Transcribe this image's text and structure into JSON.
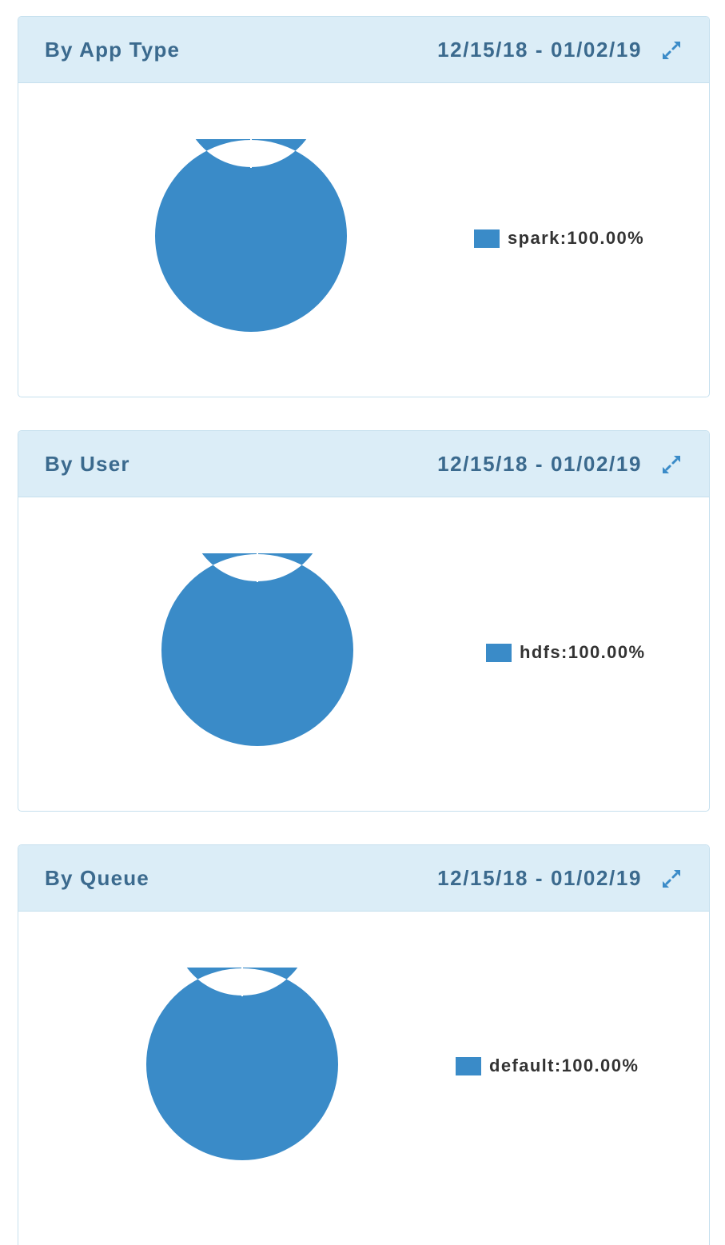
{
  "colors": {
    "series": "#3a8bc8",
    "header_bg": "#dbedf7",
    "title": "#3b6a8e"
  },
  "panels": [
    {
      "title": "By App Type",
      "date_range": "12/15/18 - 01/02/19",
      "expand_icon": "expand-diagonal-icon",
      "chart_data": {
        "type": "pie",
        "variant": "donut",
        "slices": [
          {
            "label": "spark:100.00%",
            "name": "spark",
            "value": 100.0
          }
        ]
      }
    },
    {
      "title": "By User",
      "date_range": "12/15/18 - 01/02/19",
      "expand_icon": "expand-diagonal-icon",
      "chart_data": {
        "type": "pie",
        "variant": "donut",
        "slices": [
          {
            "label": "hdfs:100.00%",
            "name": "hdfs",
            "value": 100.0
          }
        ]
      }
    },
    {
      "title": "By Queue",
      "date_range": "12/15/18 - 01/02/19",
      "expand_icon": "expand-diagonal-icon",
      "chart_data": {
        "type": "pie",
        "variant": "donut",
        "slices": [
          {
            "label": "default:100.00%",
            "name": "default",
            "value": 100.0
          }
        ]
      }
    }
  ]
}
